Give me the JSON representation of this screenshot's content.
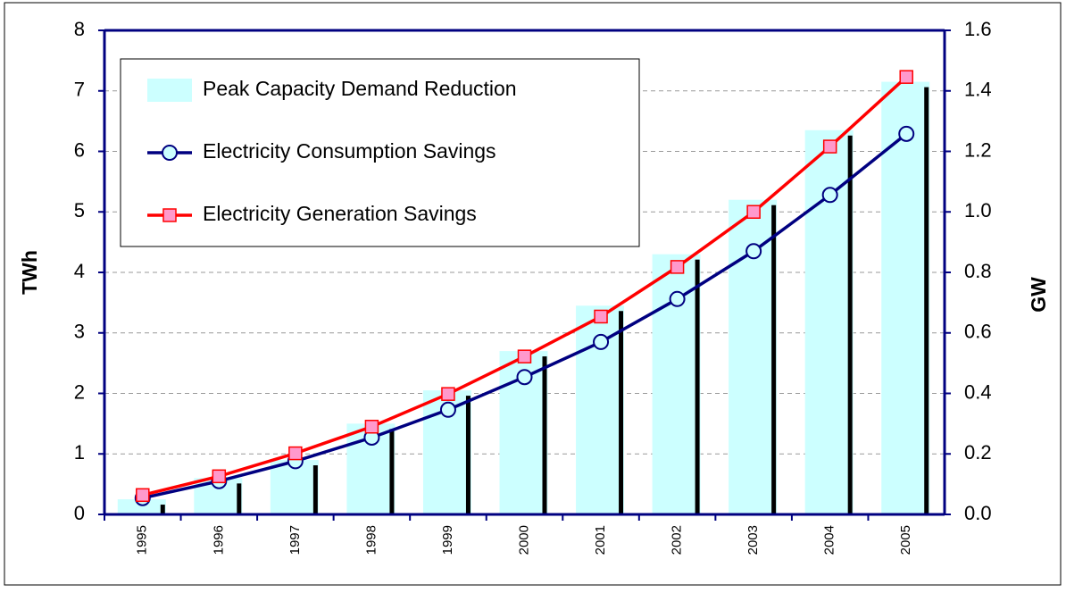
{
  "chart_data": {
    "type": "bar-line",
    "categories": [
      "1995",
      "1996",
      "1997",
      "1998",
      "1999",
      "2000",
      "2001",
      "2002",
      "2003",
      "2004",
      "2005"
    ],
    "ylabel": "TWh",
    "y2label": "GW",
    "ylim": [
      0,
      8
    ],
    "yticks": [
      0,
      1,
      2,
      3,
      4,
      5,
      6,
      7,
      8
    ],
    "y2lim": [
      0,
      1.6
    ],
    "y2ticks": [
      {
        "value": 0,
        "label": "0.0"
      },
      {
        "value": 0.2,
        "label": "0.2"
      },
      {
        "value": 0.4,
        "label": "0.4"
      },
      {
        "value": 0.6,
        "label": "0.6"
      },
      {
        "value": 0.8,
        "label": "0.8"
      },
      {
        "value": 1.0,
        "label": "1.0"
      },
      {
        "value": 1.2,
        "label": "1.2"
      },
      {
        "value": 1.4,
        "label": "1.4"
      },
      {
        "value": 1.6,
        "label": "1.6"
      }
    ],
    "grid": true,
    "series": [
      {
        "name": "Peak Capacity Demand Reduction",
        "type": "bar",
        "axis": "y2",
        "color": "#ccffff",
        "values": [
          0.05,
          0.12,
          0.18,
          0.3,
          0.41,
          0.54,
          0.69,
          0.86,
          1.04,
          1.27,
          1.43
        ]
      },
      {
        "name": "Electricity Consumption Savings",
        "type": "line",
        "marker": "circle",
        "color": "#000080",
        "marker_fill": "#ccffff",
        "values": [
          0.27,
          0.55,
          0.88,
          1.27,
          1.73,
          2.27,
          2.85,
          3.56,
          4.35,
          5.28,
          6.29
        ]
      },
      {
        "name": "Electricity Generation Savings",
        "type": "line",
        "marker": "square",
        "color": "#ff0000",
        "marker_fill": "#ff99cc",
        "values": [
          0.32,
          0.63,
          1.01,
          1.45,
          1.99,
          2.61,
          3.27,
          4.09,
          5.0,
          6.08,
          7.23
        ]
      }
    ]
  }
}
